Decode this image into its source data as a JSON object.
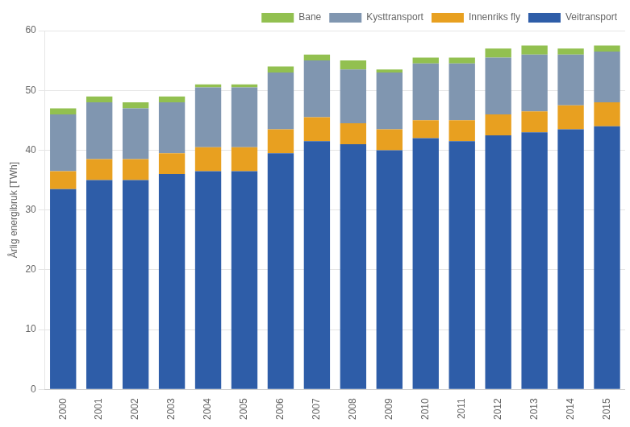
{
  "chart_data": {
    "type": "bar",
    "stacked": true,
    "categories": [
      "2000",
      "2001",
      "2002",
      "2003",
      "2004",
      "2005",
      "2006",
      "2007",
      "2008",
      "2009",
      "2010",
      "2011",
      "2012",
      "2013",
      "2014",
      "2015"
    ],
    "series": [
      {
        "name": "Veitransport",
        "color": "#2E5DA8",
        "values": [
          33.5,
          35.0,
          35.0,
          36.0,
          36.5,
          36.5,
          39.5,
          41.5,
          41.0,
          40.0,
          42.0,
          41.5,
          42.5,
          43.0,
          43.5,
          44.0
        ]
      },
      {
        "name": "Innenriks fly",
        "color": "#E8A020",
        "values": [
          3.0,
          3.5,
          3.5,
          3.5,
          4.0,
          4.0,
          4.0,
          4.0,
          3.5,
          3.5,
          3.0,
          3.5,
          3.5,
          3.5,
          4.0,
          4.0
        ]
      },
      {
        "name": "Kysttransport",
        "color": "#8096B0",
        "values": [
          9.5,
          9.5,
          8.5,
          8.5,
          10.0,
          10.0,
          9.5,
          9.5,
          9.0,
          9.5,
          9.5,
          9.5,
          9.5,
          9.5,
          8.5,
          8.5
        ]
      },
      {
        "name": "Bane",
        "color": "#92C050",
        "values": [
          1.0,
          1.0,
          1.0,
          1.0,
          0.5,
          0.5,
          1.0,
          1.0,
          1.5,
          0.5,
          1.0,
          1.0,
          1.5,
          1.5,
          1.0,
          1.0
        ]
      }
    ],
    "ylabel": "Årlig energibruk [TWh]",
    "ylim": [
      0,
      60
    ],
    "yticks": [
      0,
      10,
      20,
      30,
      40,
      50,
      60
    ],
    "grid": true,
    "legend": "upper right"
  }
}
